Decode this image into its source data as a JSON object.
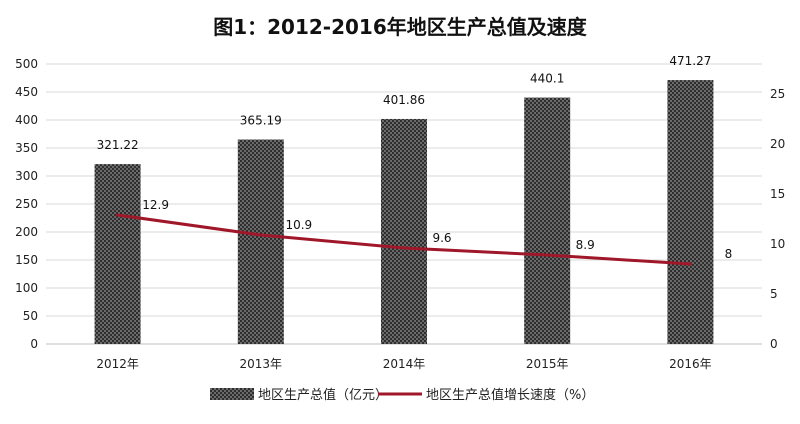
{
  "chart_data": {
    "type": "bar",
    "title": "图1：2012-2016年地区生产总值及速度",
    "categories": [
      "2012年",
      "2013年",
      "2014年",
      "2015年",
      "2016年"
    ],
    "series": [
      {
        "name": "地区生产总值（亿元）",
        "type": "bar",
        "axis": "left",
        "values": [
          321.22,
          365.19,
          401.86,
          440.1,
          471.27
        ],
        "labels": [
          "321.22",
          "365.19",
          "401.86",
          "440.1",
          "471.27"
        ]
      },
      {
        "name": "地区生产总值增长速度（%）",
        "type": "line",
        "axis": "right",
        "values": [
          12.9,
          10.9,
          9.6,
          8.9,
          8
        ],
        "labels": [
          "12.9",
          "10.9",
          "9.6",
          "8.9",
          "8"
        ]
      }
    ],
    "y_left": {
      "min": 0,
      "max": 500,
      "ticks": [
        "0",
        "50",
        "100",
        "150",
        "200",
        "250",
        "300",
        "350",
        "400",
        "450",
        "500"
      ]
    },
    "y_right": {
      "min": 0,
      "max": 28,
      "ticks": [
        "0",
        "5",
        "10",
        "15",
        "20",
        "25"
      ]
    },
    "grid": true,
    "legend_position": "bottom",
    "colors": {
      "bar_fill": "#6a6a6a",
      "bar_dot": "#1a1a1a",
      "line": "#a0172a",
      "grid": "#d9d9d9"
    }
  }
}
